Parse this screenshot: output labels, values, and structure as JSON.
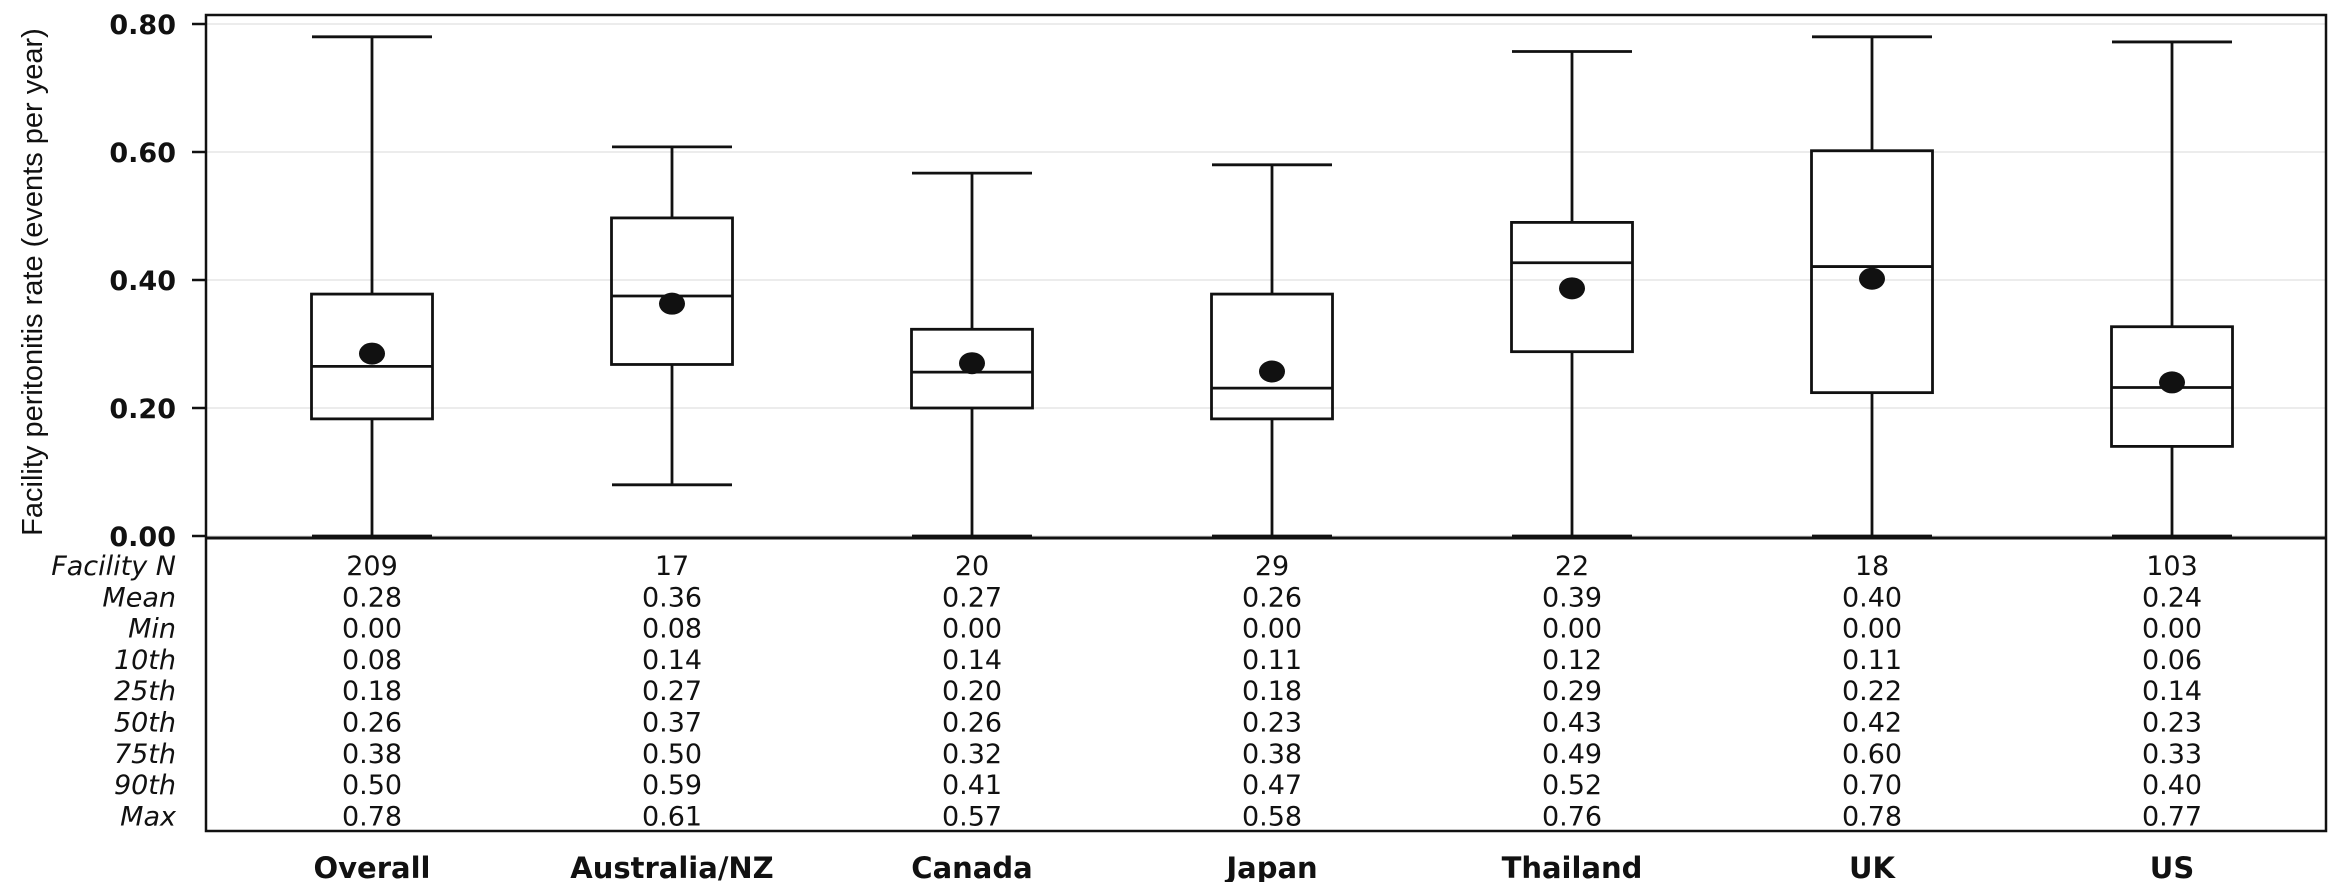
{
  "chart_data": {
    "type": "box",
    "ylabel": "Facility peritonitis rate (events per year)",
    "ylim": [
      0,
      0.8
    ],
    "yticks": [
      "0.00",
      "0.20",
      "0.40",
      "0.60",
      "0.80"
    ],
    "grid": true,
    "categories": [
      "Overall",
      "Australia/NZ",
      "Canada",
      "Japan",
      "Thailand",
      "UK",
      "US"
    ],
    "boxes": [
      {
        "min": 0.0,
        "q1": 0.183,
        "median": 0.265,
        "q3": 0.378,
        "max": 0.78,
        "mean": 0.285
      },
      {
        "min": 0.08,
        "q1": 0.268,
        "median": 0.375,
        "q3": 0.497,
        "max": 0.608,
        "mean": 0.363
      },
      {
        "min": 0.0,
        "q1": 0.2,
        "median": 0.256,
        "q3": 0.323,
        "max": 0.567,
        "mean": 0.27
      },
      {
        "min": 0.0,
        "q1": 0.183,
        "median": 0.231,
        "q3": 0.378,
        "max": 0.58,
        "mean": 0.257
      },
      {
        "min": 0.0,
        "q1": 0.288,
        "median": 0.427,
        "q3": 0.49,
        "max": 0.757,
        "mean": 0.387
      },
      {
        "min": 0.0,
        "q1": 0.224,
        "median": 0.421,
        "q3": 0.602,
        "max": 0.78,
        "mean": 0.402
      },
      {
        "min": 0.0,
        "q1": 0.14,
        "median": 0.232,
        "q3": 0.327,
        "max": 0.772,
        "mean": 0.24
      }
    ],
    "table": {
      "row_labels": [
        "Facility N",
        "Mean",
        "Min",
        "10th",
        "25th",
        "50th",
        "75th",
        "90th",
        "Max"
      ],
      "rows": [
        [
          "209",
          "17",
          "20",
          "29",
          "22",
          "18",
          "103"
        ],
        [
          "0.28",
          "0.36",
          "0.27",
          "0.26",
          "0.39",
          "0.40",
          "0.24"
        ],
        [
          "0.00",
          "0.08",
          "0.00",
          "0.00",
          "0.00",
          "0.00",
          "0.00"
        ],
        [
          "0.08",
          "0.14",
          "0.14",
          "0.11",
          "0.12",
          "0.11",
          "0.06"
        ],
        [
          "0.18",
          "0.27",
          "0.20",
          "0.18",
          "0.29",
          "0.22",
          "0.14"
        ],
        [
          "0.26",
          "0.37",
          "0.26",
          "0.23",
          "0.43",
          "0.42",
          "0.23"
        ],
        [
          "0.38",
          "0.50",
          "0.32",
          "0.38",
          "0.49",
          "0.60",
          "0.33"
        ],
        [
          "0.50",
          "0.59",
          "0.41",
          "0.47",
          "0.52",
          "0.70",
          "0.40"
        ],
        [
          "0.78",
          "0.61",
          "0.57",
          "0.58",
          "0.76",
          "0.78",
          "0.77"
        ]
      ]
    },
    "colors": {
      "box_stroke": "#111111",
      "mean_marker": "#111111",
      "grid": "#e6e6e6"
    }
  }
}
